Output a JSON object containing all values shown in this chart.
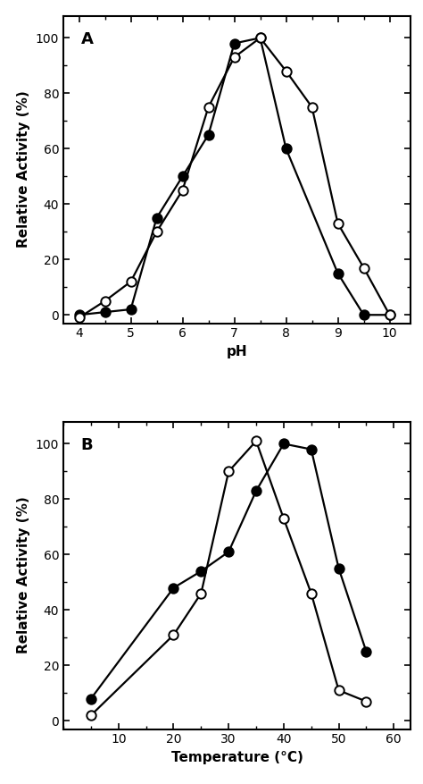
{
  "panel_A": {
    "label": "A",
    "xlabel": "pH",
    "ylabel": "Relative Activity (%)",
    "xlim": [
      3.7,
      10.4
    ],
    "ylim": [
      -3,
      108
    ],
    "xticks": [
      4,
      5,
      6,
      7,
      8,
      9,
      10
    ],
    "yticks": [
      0,
      20,
      40,
      60,
      80,
      100
    ],
    "filled_x": [
      4.0,
      4.5,
      5.0,
      5.5,
      6.0,
      6.5,
      7.0,
      7.5,
      8.0,
      9.0,
      9.5,
      10.0
    ],
    "filled_y": [
      0,
      1,
      2,
      35,
      50,
      65,
      98,
      100,
      60,
      15,
      0,
      0
    ],
    "open_x": [
      4.0,
      4.5,
      5.0,
      5.5,
      6.0,
      6.5,
      7.0,
      7.5,
      8.0,
      8.5,
      9.0,
      9.5,
      10.0
    ],
    "open_y": [
      -1,
      5,
      12,
      30,
      45,
      75,
      93,
      100,
      88,
      75,
      33,
      17,
      0
    ]
  },
  "panel_B": {
    "label": "B",
    "xlabel": "Temperature (°C)",
    "ylabel": "Relative Activity (%)",
    "xlim": [
      0,
      63
    ],
    "ylim": [
      -3,
      108
    ],
    "xticks": [
      10,
      20,
      30,
      40,
      50,
      60
    ],
    "yticks": [
      0,
      20,
      40,
      60,
      80,
      100
    ],
    "filled_x": [
      5,
      20,
      25,
      30,
      35,
      40,
      45,
      50,
      55
    ],
    "filled_y": [
      8,
      48,
      54,
      61,
      83,
      100,
      98,
      55,
      25
    ],
    "open_x": [
      5,
      20,
      25,
      30,
      35,
      40,
      45,
      50,
      55
    ],
    "open_y": [
      2,
      31,
      46,
      90,
      101,
      73,
      46,
      11,
      7
    ]
  },
  "marker_size": 7.5,
  "line_width": 1.6,
  "marker_edge_width": 1.4,
  "font_size_label": 11,
  "font_size_tick": 10,
  "font_size_panel": 13
}
